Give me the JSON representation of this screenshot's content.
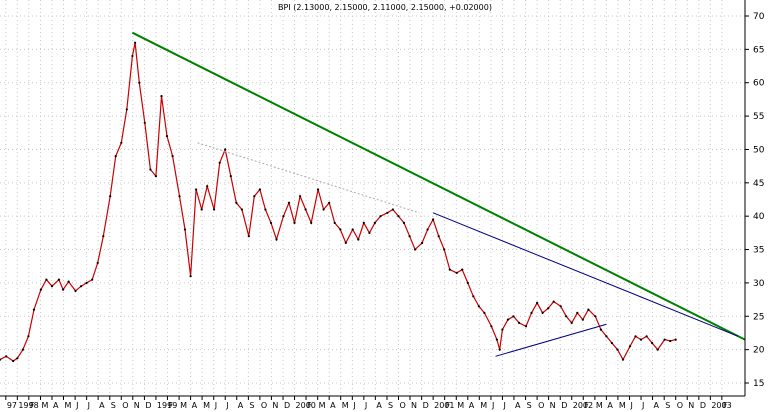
{
  "chart_data": {
    "type": "line",
    "title": "BPI (2.13000, 2.15000, 2.11000, 2.15000, +0.02000)",
    "xlabel": "",
    "ylabel": "",
    "ylim": [
      1.5,
      7.0
    ],
    "y_ticks": [
      1.5,
      2.0,
      2.5,
      3.0,
      3.5,
      4.0,
      4.5,
      5.0,
      5.5,
      6.0,
      6.5,
      7.0
    ],
    "y_tick_labels": [
      "15",
      "20",
      "25",
      "30",
      "35",
      "40",
      "45",
      "50",
      "55",
      "60",
      "65",
      "70"
    ],
    "x_range": [
      1997.875,
      2003.25
    ],
    "x_ticks": [
      {
        "t": 1997.917,
        "label": "97"
      },
      {
        "t": 1998.0,
        "label": "1998"
      },
      {
        "t": 1998.083,
        "label": "F"
      },
      {
        "t": 1998.167,
        "label": "M"
      },
      {
        "t": 1998.25,
        "label": "A"
      },
      {
        "t": 1998.333,
        "label": "M"
      },
      {
        "t": 1998.417,
        "label": "J"
      },
      {
        "t": 1998.5,
        "label": "J"
      },
      {
        "t": 1998.583,
        "label": "A"
      },
      {
        "t": 1998.667,
        "label": "S"
      },
      {
        "t": 1998.75,
        "label": "O"
      },
      {
        "t": 1998.833,
        "label": "N"
      },
      {
        "t": 1998.917,
        "label": "D"
      },
      {
        "t": 1999.0,
        "label": "1999"
      },
      {
        "t": 1999.083,
        "label": "F"
      },
      {
        "t": 1999.167,
        "label": "M"
      },
      {
        "t": 1999.25,
        "label": "A"
      },
      {
        "t": 1999.333,
        "label": "M"
      },
      {
        "t": 1999.417,
        "label": "J"
      },
      {
        "t": 1999.5,
        "label": "J"
      },
      {
        "t": 1999.583,
        "label": "A"
      },
      {
        "t": 1999.667,
        "label": "S"
      },
      {
        "t": 1999.75,
        "label": "O"
      },
      {
        "t": 1999.833,
        "label": "N"
      },
      {
        "t": 1999.917,
        "label": "D"
      },
      {
        "t": 2000.0,
        "label": "2000"
      },
      {
        "t": 2000.083,
        "label": "F"
      },
      {
        "t": 2000.167,
        "label": "M"
      },
      {
        "t": 2000.25,
        "label": "A"
      },
      {
        "t": 2000.333,
        "label": "M"
      },
      {
        "t": 2000.417,
        "label": "J"
      },
      {
        "t": 2000.5,
        "label": "J"
      },
      {
        "t": 2000.583,
        "label": "A"
      },
      {
        "t": 2000.667,
        "label": "S"
      },
      {
        "t": 2000.75,
        "label": "O"
      },
      {
        "t": 2000.833,
        "label": "N"
      },
      {
        "t": 2000.917,
        "label": "D"
      },
      {
        "t": 2001.0,
        "label": "2001"
      },
      {
        "t": 2001.083,
        "label": "F"
      },
      {
        "t": 2001.167,
        "label": "M"
      },
      {
        "t": 2001.25,
        "label": "A"
      },
      {
        "t": 2001.333,
        "label": "M"
      },
      {
        "t": 2001.417,
        "label": "J"
      },
      {
        "t": 2001.5,
        "label": "J"
      },
      {
        "t": 2001.583,
        "label": "A"
      },
      {
        "t": 2001.667,
        "label": "S"
      },
      {
        "t": 2001.75,
        "label": "O"
      },
      {
        "t": 2001.833,
        "label": "N"
      },
      {
        "t": 2001.917,
        "label": "D"
      },
      {
        "t": 2002.0,
        "label": "2002"
      },
      {
        "t": 2002.083,
        "label": "F"
      },
      {
        "t": 2002.167,
        "label": "M"
      },
      {
        "t": 2002.25,
        "label": "A"
      },
      {
        "t": 2002.333,
        "label": "M"
      },
      {
        "t": 2002.417,
        "label": "J"
      },
      {
        "t": 2002.5,
        "label": "J"
      },
      {
        "t": 2002.583,
        "label": "A"
      },
      {
        "t": 2002.667,
        "label": "S"
      },
      {
        "t": 2002.75,
        "label": "O"
      },
      {
        "t": 2002.833,
        "label": "N"
      },
      {
        "t": 2002.917,
        "label": "D"
      },
      {
        "t": 2003.0,
        "label": "2003"
      },
      {
        "t": 2003.083,
        "label": "F"
      }
    ],
    "grid": true,
    "series": [
      {
        "color": "#cc0000",
        "points": [
          [
            1997.875,
            1.85
          ],
          [
            1997.92,
            1.9
          ],
          [
            1997.97,
            1.83
          ],
          [
            1998.0,
            1.87
          ],
          [
            1998.04,
            2.0
          ],
          [
            1998.08,
            2.2
          ],
          [
            1998.12,
            2.6
          ],
          [
            1998.17,
            2.9
          ],
          [
            1998.21,
            3.05
          ],
          [
            1998.25,
            2.95
          ],
          [
            1998.3,
            3.05
          ],
          [
            1998.33,
            2.9
          ],
          [
            1998.37,
            3.02
          ],
          [
            1998.42,
            2.88
          ],
          [
            1998.46,
            2.95
          ],
          [
            1998.5,
            3.0
          ],
          [
            1998.54,
            3.05
          ],
          [
            1998.58,
            3.3
          ],
          [
            1998.62,
            3.7
          ],
          [
            1998.67,
            4.3
          ],
          [
            1998.71,
            4.9
          ],
          [
            1998.75,
            5.1
          ],
          [
            1998.79,
            5.6
          ],
          [
            1998.83,
            6.4
          ],
          [
            1998.85,
            6.6
          ],
          [
            1998.88,
            6.0
          ],
          [
            1998.92,
            5.4
          ],
          [
            1998.96,
            4.7
          ],
          [
            1999.0,
            4.6
          ],
          [
            1999.04,
            5.8
          ],
          [
            1999.08,
            5.2
          ],
          [
            1999.12,
            4.9
          ],
          [
            1999.17,
            4.3
          ],
          [
            1999.21,
            3.8
          ],
          [
            1999.25,
            3.1
          ],
          [
            1999.29,
            4.4
          ],
          [
            1999.33,
            4.1
          ],
          [
            1999.37,
            4.45
          ],
          [
            1999.42,
            4.1
          ],
          [
            1999.46,
            4.8
          ],
          [
            1999.5,
            5.0
          ],
          [
            1999.54,
            4.6
          ],
          [
            1999.58,
            4.2
          ],
          [
            1999.62,
            4.1
          ],
          [
            1999.67,
            3.7
          ],
          [
            1999.71,
            4.3
          ],
          [
            1999.75,
            4.4
          ],
          [
            1999.79,
            4.1
          ],
          [
            1999.83,
            3.9
          ],
          [
            1999.87,
            3.65
          ],
          [
            1999.92,
            4.0
          ],
          [
            1999.96,
            4.2
          ],
          [
            2000.0,
            3.9
          ],
          [
            2000.04,
            4.3
          ],
          [
            2000.08,
            4.1
          ],
          [
            2000.12,
            3.9
          ],
          [
            2000.17,
            4.4
          ],
          [
            2000.21,
            4.1
          ],
          [
            2000.25,
            4.2
          ],
          [
            2000.29,
            3.9
          ],
          [
            2000.33,
            3.8
          ],
          [
            2000.37,
            3.6
          ],
          [
            2000.42,
            3.8
          ],
          [
            2000.46,
            3.65
          ],
          [
            2000.5,
            3.9
          ],
          [
            2000.54,
            3.75
          ],
          [
            2000.58,
            3.9
          ],
          [
            2000.62,
            4.0
          ],
          [
            2000.67,
            4.05
          ],
          [
            2000.71,
            4.1
          ],
          [
            2000.75,
            4.0
          ],
          [
            2000.79,
            3.9
          ],
          [
            2000.83,
            3.7
          ],
          [
            2000.87,
            3.5
          ],
          [
            2000.92,
            3.6
          ],
          [
            2000.96,
            3.8
          ],
          [
            2001.0,
            3.95
          ],
          [
            2001.04,
            3.7
          ],
          [
            2001.08,
            3.5
          ],
          [
            2001.12,
            3.2
          ],
          [
            2001.17,
            3.15
          ],
          [
            2001.21,
            3.2
          ],
          [
            2001.25,
            3.0
          ],
          [
            2001.29,
            2.8
          ],
          [
            2001.33,
            2.65
          ],
          [
            2001.37,
            2.55
          ],
          [
            2001.42,
            2.35
          ],
          [
            2001.46,
            2.15
          ],
          [
            2001.48,
            2.0
          ],
          [
            2001.5,
            2.3
          ],
          [
            2001.54,
            2.45
          ],
          [
            2001.58,
            2.5
          ],
          [
            2001.62,
            2.4
          ],
          [
            2001.67,
            2.35
          ],
          [
            2001.71,
            2.55
          ],
          [
            2001.75,
            2.7
          ],
          [
            2001.79,
            2.55
          ],
          [
            2001.83,
            2.62
          ],
          [
            2001.87,
            2.72
          ],
          [
            2001.92,
            2.65
          ],
          [
            2001.96,
            2.5
          ],
          [
            2002.0,
            2.4
          ],
          [
            2002.04,
            2.55
          ],
          [
            2002.08,
            2.45
          ],
          [
            2002.12,
            2.6
          ],
          [
            2002.17,
            2.5
          ],
          [
            2002.21,
            2.3
          ],
          [
            2002.25,
            2.2
          ],
          [
            2002.29,
            2.1
          ],
          [
            2002.33,
            2.0
          ],
          [
            2002.37,
            1.85
          ],
          [
            2002.42,
            2.05
          ],
          [
            2002.46,
            2.2
          ],
          [
            2002.5,
            2.15
          ],
          [
            2002.54,
            2.2
          ],
          [
            2002.58,
            2.1
          ],
          [
            2002.62,
            2.0
          ],
          [
            2002.67,
            2.15
          ],
          [
            2002.71,
            2.13
          ],
          [
            2002.75,
            2.15
          ]
        ]
      }
    ],
    "trendlines": [
      {
        "color": "#008000",
        "width": 2,
        "from": [
          1998.83,
          6.75
        ],
        "to": [
          2003.25,
          2.15
        ]
      },
      {
        "color": "#000080",
        "width": 1,
        "from": [
          2001.0,
          4.05
        ],
        "to": [
          2003.2,
          2.2
        ]
      },
      {
        "color": "#000080",
        "width": 1,
        "from": [
          2001.45,
          1.9
        ],
        "to": [
          2002.25,
          2.38
        ]
      },
      {
        "color": "#aaaaaa",
        "width": 1,
        "dashed": true,
        "from": [
          1999.3,
          5.1
        ],
        "to": [
          2000.9,
          4.05
        ]
      }
    ]
  }
}
